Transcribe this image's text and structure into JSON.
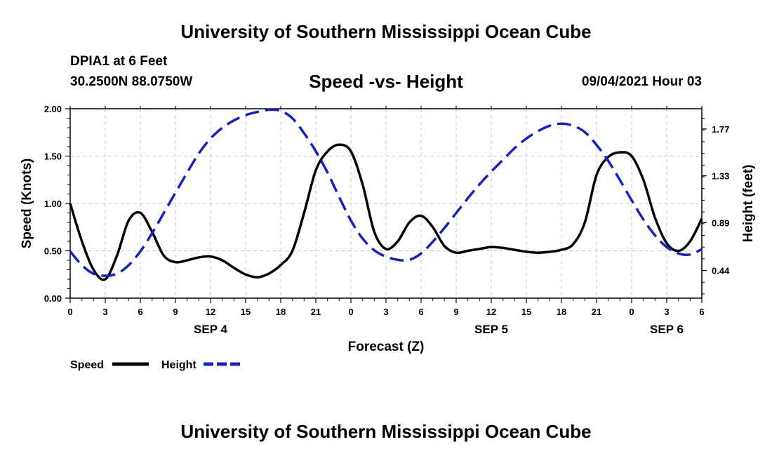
{
  "header": {
    "title": "University of Southern Mississippi Ocean Cube",
    "station": "DPIA1 at 6 Feet",
    "coordinates": "30.2500N  88.0750W",
    "subtitle": "Speed -vs- Height",
    "datetime": "09/04/2021 Hour 03"
  },
  "footer": {
    "title": "University of Southern Mississippi Ocean Cube"
  },
  "chart_data": {
    "type": "line",
    "title": "Speed -vs- Height",
    "xlabel": "Forecast (Z)",
    "ylabel": "Speed (Knots)",
    "y2label": "Height (feet)",
    "xlim": [
      0,
      54
    ],
    "ylim": [
      0,
      2.0
    ],
    "y2lim": [
      0.18,
      1.96
    ],
    "grid": true,
    "x_ticks": [
      0,
      3,
      6,
      9,
      12,
      15,
      18,
      21,
      24,
      27,
      30,
      33,
      36,
      39,
      42,
      45,
      48,
      51,
      54
    ],
    "x_tick_labels": [
      "0",
      "3",
      "6",
      "9",
      "12",
      "15",
      "18",
      "21",
      "0",
      "3",
      "6",
      "9",
      "12",
      "15",
      "18",
      "21",
      "0",
      "3",
      "6"
    ],
    "day_labels": [
      {
        "x": 12,
        "label": "SEP 4"
      },
      {
        "x": 36,
        "label": "SEP 5"
      },
      {
        "x": 51,
        "label": "SEP 6"
      }
    ],
    "y_ticks": [
      0.0,
      0.5,
      1.0,
      1.5,
      2.0
    ],
    "y_tick_labels": [
      "0.00",
      "0.50",
      "1.00",
      "1.50",
      "2.00"
    ],
    "y2_ticks": [
      0.44,
      0.89,
      1.33,
      1.77
    ],
    "y2_tick_labels": [
      "0.44",
      "0.89",
      "1.33",
      "1.77"
    ],
    "series": [
      {
        "name": "Speed",
        "axis": "left",
        "color": "#000000",
        "dash": "solid",
        "x": [
          0,
          1,
          2,
          3,
          4,
          5,
          6,
          7,
          8,
          9,
          10,
          11,
          12,
          13,
          14,
          15,
          16,
          17,
          18,
          19,
          20,
          21,
          22,
          23,
          24,
          25,
          26,
          27,
          28,
          29,
          30,
          31,
          32,
          33,
          34,
          35,
          36,
          37,
          38,
          39,
          40,
          41,
          42,
          43,
          44,
          45,
          46,
          47,
          48,
          49,
          50,
          51,
          52,
          53,
          54
        ],
        "values": [
          1.0,
          0.6,
          0.3,
          0.2,
          0.45,
          0.82,
          0.9,
          0.7,
          0.45,
          0.38,
          0.4,
          0.43,
          0.44,
          0.4,
          0.32,
          0.25,
          0.22,
          0.26,
          0.35,
          0.5,
          0.9,
          1.35,
          1.55,
          1.62,
          1.55,
          1.2,
          0.7,
          0.52,
          0.6,
          0.8,
          0.87,
          0.75,
          0.55,
          0.48,
          0.5,
          0.52,
          0.54,
          0.53,
          0.51,
          0.49,
          0.48,
          0.49,
          0.51,
          0.57,
          0.8,
          1.3,
          1.49,
          1.54,
          1.5,
          1.25,
          0.85,
          0.58,
          0.5,
          0.6,
          0.84
        ]
      },
      {
        "name": "Height",
        "axis": "right",
        "color": "#1520c8",
        "dash": "dashed",
        "x": [
          0,
          1,
          2,
          3,
          4,
          5,
          6,
          7,
          8,
          9,
          10,
          11,
          12,
          13,
          14,
          15,
          16,
          17,
          18,
          19,
          20,
          21,
          22,
          23,
          24,
          25,
          26,
          27,
          28,
          29,
          30,
          31,
          32,
          33,
          34,
          35,
          36,
          37,
          38,
          39,
          40,
          41,
          42,
          43,
          44,
          45,
          46,
          47,
          48,
          49,
          50,
          51,
          52,
          53,
          54
        ],
        "values": [
          0.62,
          0.49,
          0.41,
          0.39,
          0.41,
          0.49,
          0.62,
          0.79,
          0.98,
          1.17,
          1.36,
          1.54,
          1.68,
          1.78,
          1.85,
          1.9,
          1.93,
          1.95,
          1.94,
          1.87,
          1.73,
          1.56,
          1.36,
          1.13,
          0.91,
          0.74,
          0.63,
          0.57,
          0.54,
          0.54,
          0.6,
          0.71,
          0.84,
          0.98,
          1.12,
          1.25,
          1.37,
          1.48,
          1.59,
          1.68,
          1.75,
          1.8,
          1.82,
          1.8,
          1.74,
          1.62,
          1.47,
          1.29,
          1.1,
          0.92,
          0.77,
          0.66,
          0.6,
          0.59,
          0.64
        ]
      }
    ],
    "legend": [
      {
        "label": "Speed",
        "color": "#000000",
        "dash": "solid"
      },
      {
        "label": "Height",
        "color": "#1520c8",
        "dash": "dashed"
      }
    ]
  }
}
